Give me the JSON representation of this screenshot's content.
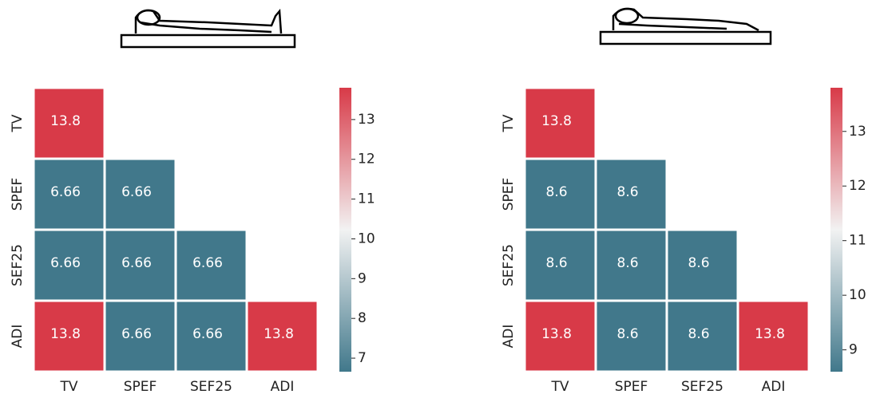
{
  "chart_data": [
    {
      "type": "heatmap",
      "x_categories": [
        "TV",
        "SPEF",
        "SEF25",
        "ADI"
      ],
      "y_categories": [
        "TV",
        "SPEF",
        "SEF25",
        "ADI"
      ],
      "values": [
        [
          13.8,
          null,
          null,
          null
        ],
        [
          6.66,
          6.66,
          null,
          null
        ],
        [
          6.66,
          6.66,
          6.66,
          null
        ],
        [
          13.8,
          6.66,
          6.66,
          13.8
        ]
      ],
      "clim": [
        6.66,
        13.8
      ],
      "cticks": [
        7,
        8,
        9,
        10,
        11,
        12,
        13
      ],
      "cmap": [
        "#41788b",
        "#f2f2f2",
        "#d83a48"
      ]
    },
    {
      "type": "heatmap",
      "x_categories": [
        "TV",
        "SPEF",
        "SEF25",
        "ADI"
      ],
      "y_categories": [
        "TV",
        "SPEF",
        "SEF25",
        "ADI"
      ],
      "values": [
        [
          13.8,
          null,
          null,
          null
        ],
        [
          8.6,
          8.6,
          null,
          null
        ],
        [
          8.6,
          8.6,
          8.6,
          null
        ],
        [
          13.8,
          8.6,
          8.6,
          13.8
        ]
      ],
      "clim": [
        8.6,
        13.8
      ],
      "cticks": [
        9,
        10,
        11,
        12,
        13
      ],
      "cmap": [
        "#41788b",
        "#f2f2f2",
        "#d83a48"
      ]
    }
  ]
}
